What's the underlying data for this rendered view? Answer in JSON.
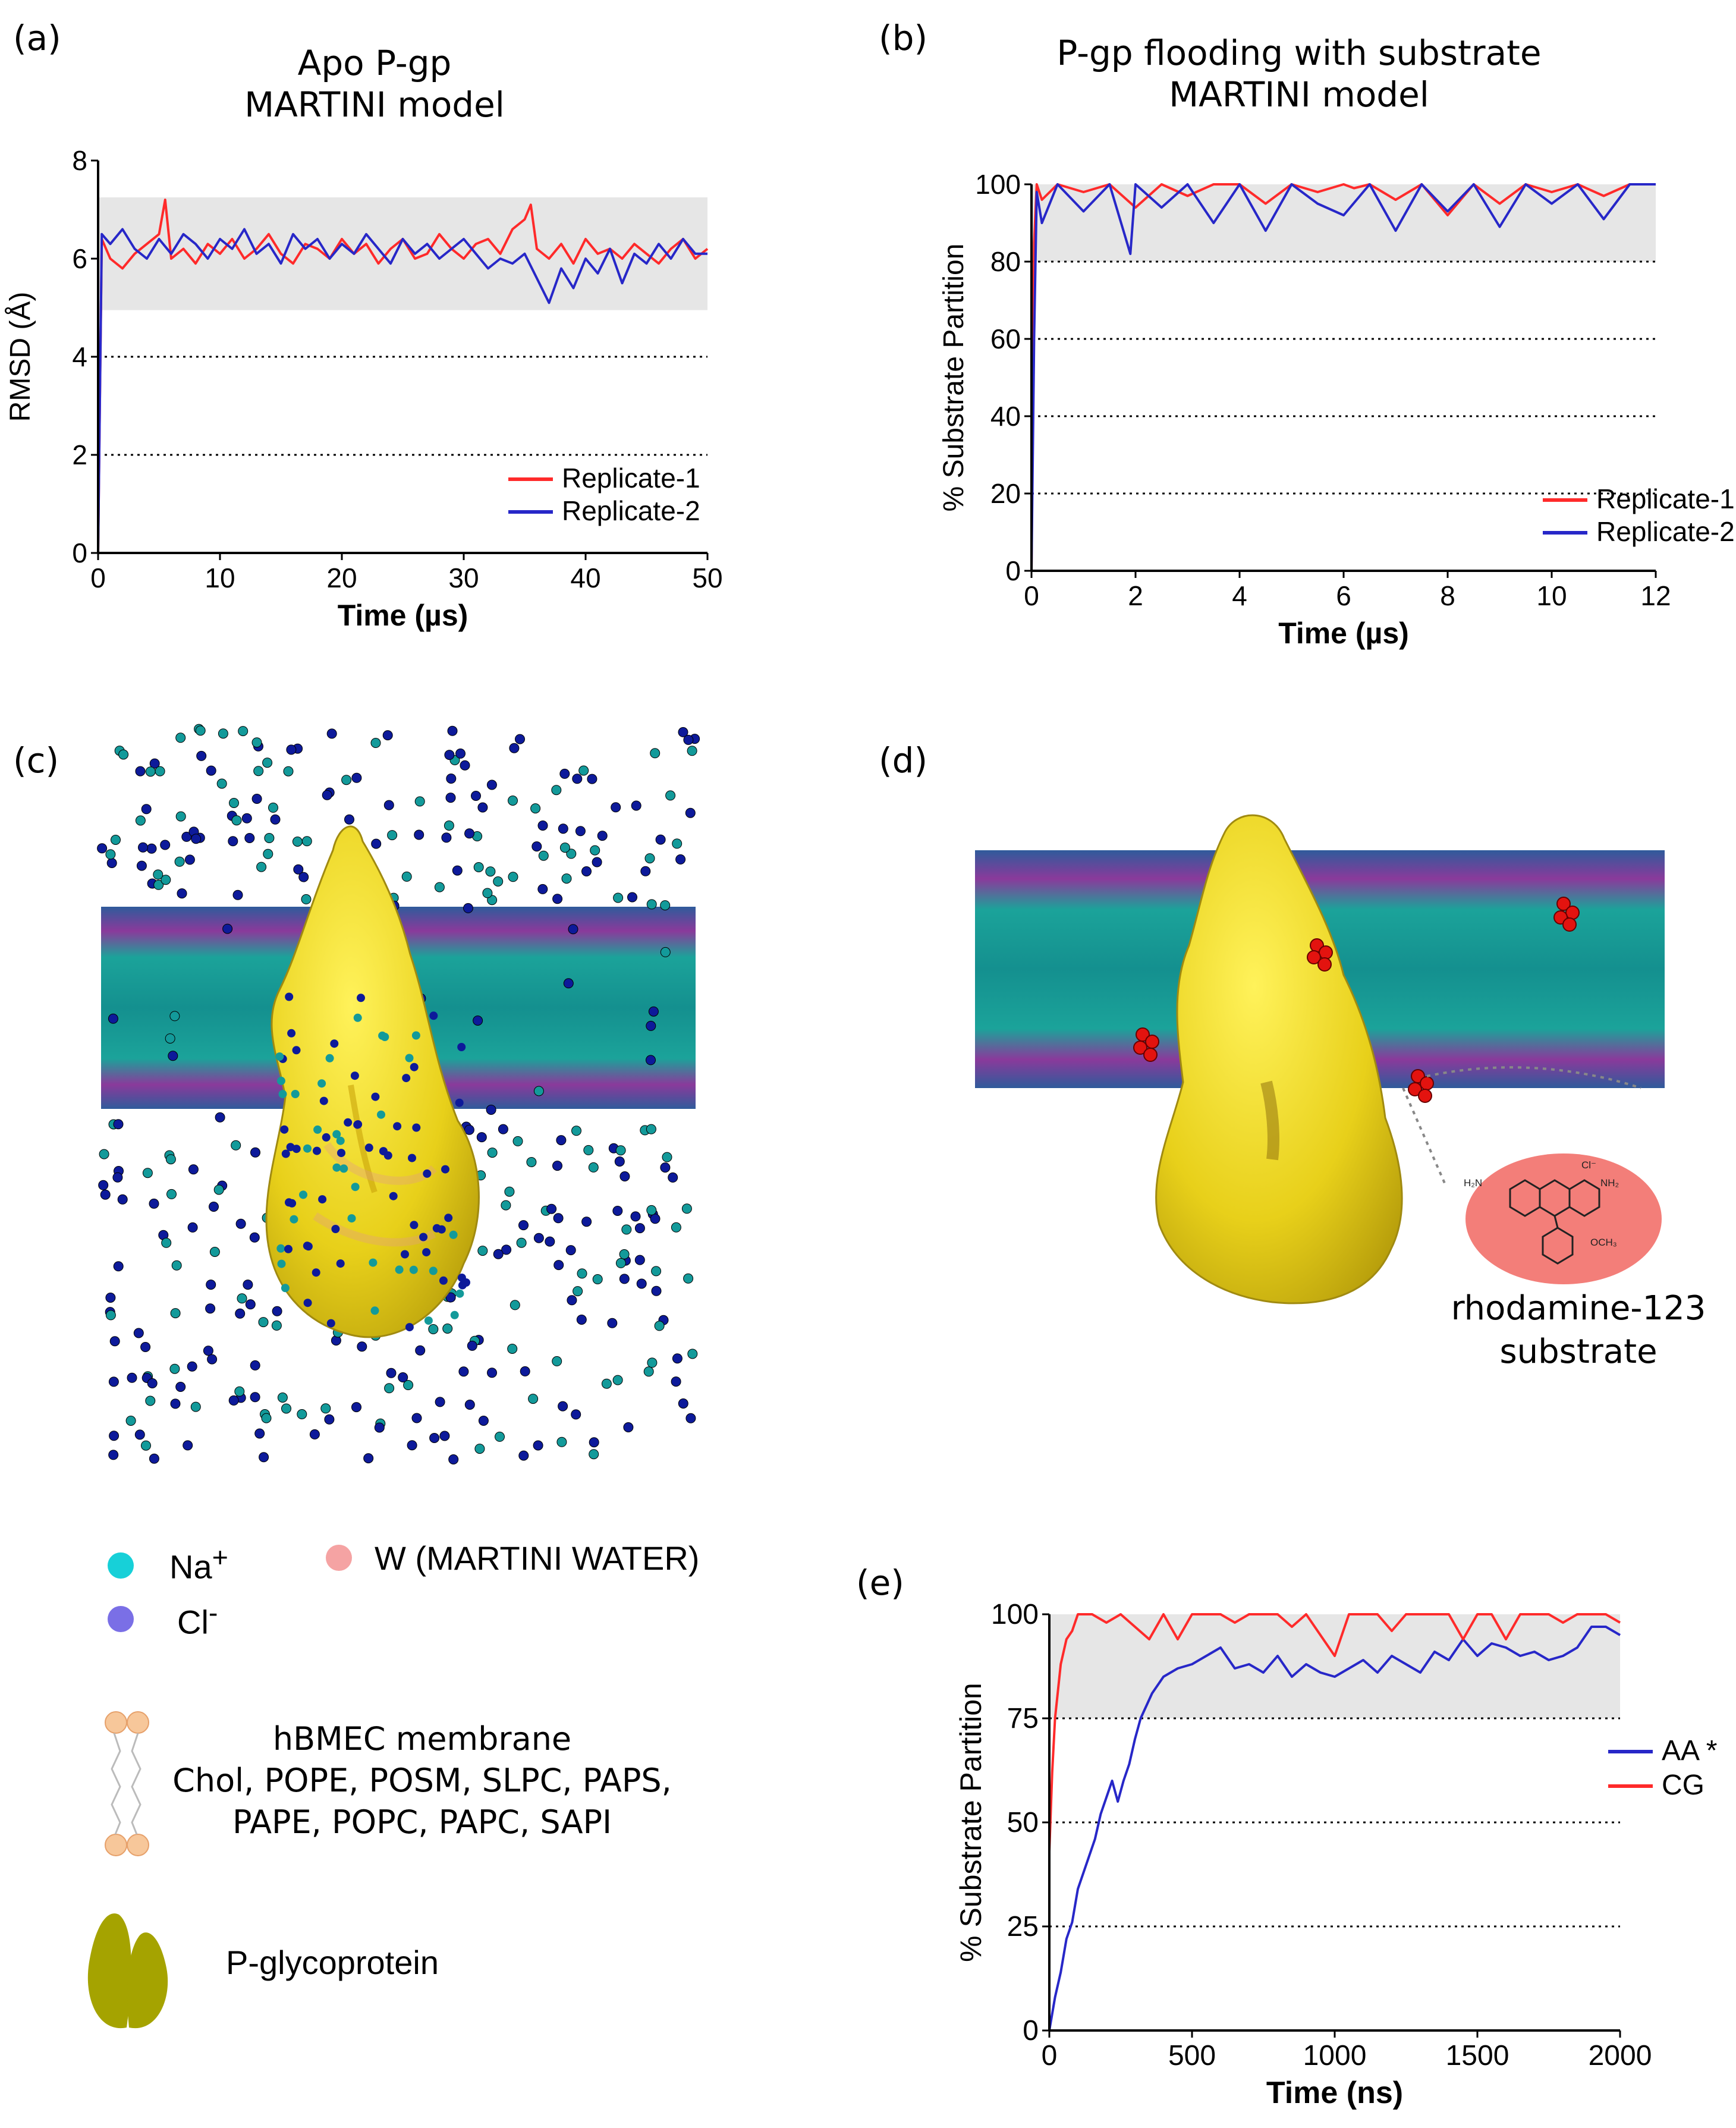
{
  "panel_labels": {
    "a": "(a)",
    "b": "(b)",
    "c": "(c)",
    "d": "(d)",
    "e": "(e)"
  },
  "panel_a": {
    "title_line1": "Apo P-gp",
    "title_line2": "MARTINI model"
  },
  "panel_b": {
    "title_line1": "P-gp flooding with substrate",
    "title_line2": "MARTINI model"
  },
  "panel_d": {
    "annotation_line1": "rhodamine-123",
    "annotation_line2": "substrate",
    "chem_labels": {
      "amine_left": "H₂N",
      "chloride": "Cl⁻",
      "amine_right": "NH₂",
      "methoxy": "OCH₃"
    }
  },
  "legend": {
    "na": "Na",
    "na_sup": "+",
    "cl": "Cl",
    "cl_sup": "-",
    "water": "W (MARTINI WATER)",
    "membrane_line1": "hBMEC membrane",
    "membrane_line2": "Chol, POPE, POSM, SLPC, PAPS,",
    "membrane_line3": "PAPE, POPC, PAPC, SAPI",
    "protein": "P-glycoprotein",
    "colors": {
      "na": "#17d0d8",
      "cl": "#7a6fe6",
      "water": "#f5a3a3",
      "lipid_head": "#f7c79a",
      "protein": "#a5a300"
    }
  },
  "colors": {
    "red": "#ff2a2a",
    "blue": "#2727c8",
    "shade": "#e6e6e6",
    "protein": "#e8d51a",
    "membrane": "#1a9a9a"
  },
  "chart_data": [
    {
      "id": "a",
      "type": "line",
      "xlabel": "Time (µs)",
      "ylabel": "RMSD (Å)",
      "xlim": [
        0,
        50
      ],
      "ylim": [
        0,
        8
      ],
      "xticks": [
        0,
        10,
        20,
        30,
        40,
        50
      ],
      "yticks": [
        0,
        2,
        4,
        6,
        8
      ],
      "dotted_hlines": [
        2,
        4
      ],
      "shaded_band": [
        4.95,
        7.25
      ],
      "legend_position": "bottom-right",
      "series": [
        {
          "name": "Replicate-1",
          "color": "#ff2a2a",
          "x": [
            0,
            0.3,
            1,
            2,
            3,
            4,
            5,
            5.5,
            6,
            7,
            8,
            9,
            10,
            11,
            12,
            13,
            14,
            15,
            16,
            17,
            18,
            19,
            20,
            21,
            22,
            23,
            24,
            25,
            26,
            27,
            28,
            29,
            30,
            31,
            32,
            33,
            34,
            35,
            35.5,
            36,
            37,
            38,
            39,
            40,
            41,
            42,
            43,
            44,
            45,
            46,
            47,
            48,
            49,
            50
          ],
          "y": [
            0,
            6.4,
            6.0,
            5.8,
            6.1,
            6.3,
            6.5,
            7.2,
            6.0,
            6.2,
            5.9,
            6.3,
            6.1,
            6.4,
            6.0,
            6.2,
            6.5,
            6.1,
            5.9,
            6.3,
            6.2,
            6.0,
            6.4,
            6.1,
            6.3,
            5.9,
            6.2,
            6.4,
            6.0,
            6.1,
            6.5,
            6.2,
            6.0,
            6.3,
            6.4,
            6.1,
            6.6,
            6.8,
            7.1,
            6.2,
            6.0,
            6.3,
            5.9,
            6.4,
            6.1,
            6.2,
            6.0,
            6.3,
            6.1,
            5.9,
            6.2,
            6.4,
            6.0,
            6.2
          ]
        },
        {
          "name": "Replicate-2",
          "color": "#2727c8",
          "x": [
            0,
            0.3,
            1,
            2,
            3,
            4,
            5,
            6,
            7,
            8,
            9,
            10,
            11,
            12,
            13,
            14,
            15,
            16,
            17,
            18,
            19,
            20,
            21,
            22,
            23,
            24,
            25,
            26,
            27,
            28,
            29,
            30,
            31,
            32,
            33,
            34,
            35,
            36,
            37,
            38,
            39,
            40,
            41,
            42,
            43,
            44,
            45,
            46,
            47,
            48,
            49,
            50
          ],
          "y": [
            0,
            6.5,
            6.3,
            6.6,
            6.2,
            6.0,
            6.4,
            6.1,
            6.5,
            6.3,
            6.0,
            6.4,
            6.2,
            6.6,
            6.1,
            6.3,
            5.9,
            6.5,
            6.2,
            6.4,
            6.0,
            6.3,
            6.1,
            6.5,
            6.2,
            5.9,
            6.4,
            6.1,
            6.3,
            6.0,
            6.2,
            6.4,
            6.1,
            5.8,
            6.0,
            5.9,
            6.1,
            5.6,
            5.1,
            5.8,
            5.4,
            6.0,
            5.7,
            6.2,
            5.5,
            6.1,
            5.9,
            6.3,
            6.0,
            6.4,
            6.1,
            6.1
          ]
        }
      ]
    },
    {
      "id": "b",
      "type": "line",
      "xlabel": "Time (µs)",
      "ylabel": "% Substrate Partition",
      "xlim": [
        0,
        12
      ],
      "ylim": [
        0,
        100
      ],
      "xticks": [
        0,
        2,
        4,
        6,
        8,
        10,
        12
      ],
      "yticks": [
        0,
        20,
        40,
        60,
        80,
        100
      ],
      "dotted_hlines": [
        20,
        40,
        60,
        80
      ],
      "shaded_band": [
        80,
        100
      ],
      "legend_position": "bottom-right",
      "series": [
        {
          "name": "Replicate-1",
          "color": "#ff2a2a",
          "x": [
            0,
            0.05,
            0.1,
            0.2,
            0.5,
            1,
            1.5,
            2,
            2.5,
            3,
            3.5,
            4,
            4.5,
            5,
            5.5,
            6,
            6.2,
            6.5,
            7,
            7.5,
            8,
            8.5,
            9,
            9.5,
            10,
            10.5,
            11,
            11.5,
            12
          ],
          "y": [
            0,
            85,
            100,
            96,
            100,
            98,
            100,
            94,
            100,
            97,
            100,
            100,
            95,
            100,
            98,
            100,
            99,
            100,
            96,
            100,
            92,
            100,
            95,
            100,
            98,
            100,
            97,
            100,
            100
          ]
        },
        {
          "name": "Replicate-2",
          "color": "#2727c8",
          "x": [
            0,
            0.05,
            0.1,
            0.2,
            0.5,
            1,
            1.5,
            1.9,
            2,
            2.5,
            3,
            3.5,
            4,
            4.5,
            5,
            5.5,
            6,
            6.5,
            7,
            7.5,
            8,
            8.5,
            9,
            9.5,
            10,
            10.5,
            11,
            11.5,
            12
          ],
          "y": [
            0,
            60,
            98,
            90,
            100,
            93,
            100,
            82,
            100,
            94,
            100,
            90,
            100,
            88,
            100,
            95,
            92,
            100,
            88,
            100,
            93,
            100,
            89,
            100,
            95,
            100,
            91,
            100,
            100
          ]
        }
      ]
    },
    {
      "id": "e",
      "type": "line",
      "xlabel": "Time (ns)",
      "ylabel": "% Substrate Partition",
      "xlim": [
        0,
        2000
      ],
      "ylim": [
        0,
        100
      ],
      "xticks": [
        0,
        500,
        1000,
        1500,
        2000
      ],
      "yticks": [
        0,
        25,
        50,
        75,
        100
      ],
      "dotted_hlines": [
        25,
        50,
        75
      ],
      "shaded_band": [
        75,
        100
      ],
      "legend_position": "right",
      "series": [
        {
          "name": "AA *",
          "color": "#2727c8",
          "x": [
            0,
            20,
            40,
            60,
            80,
            100,
            120,
            140,
            160,
            180,
            200,
            220,
            240,
            260,
            280,
            300,
            320,
            340,
            360,
            380,
            400,
            450,
            500,
            550,
            600,
            650,
            700,
            750,
            800,
            850,
            900,
            950,
            1000,
            1050,
            1100,
            1150,
            1200,
            1250,
            1300,
            1350,
            1400,
            1450,
            1500,
            1550,
            1600,
            1650,
            1700,
            1750,
            1800,
            1850,
            1900,
            1950,
            2000
          ],
          "y": [
            0,
            8,
            14,
            22,
            26,
            34,
            38,
            42,
            46,
            52,
            56,
            60,
            55,
            60,
            64,
            70,
            75,
            78,
            81,
            83,
            85,
            87,
            88,
            90,
            92,
            87,
            88,
            86,
            90,
            85,
            88,
            86,
            85,
            87,
            89,
            86,
            90,
            88,
            86,
            91,
            89,
            94,
            90,
            93,
            92,
            90,
            91,
            89,
            90,
            92,
            97,
            97,
            95
          ]
        },
        {
          "name": "CG",
          "color": "#ff2a2a",
          "x": [
            0,
            10,
            20,
            40,
            60,
            80,
            100,
            150,
            200,
            250,
            300,
            350,
            400,
            450,
            500,
            550,
            600,
            650,
            700,
            750,
            800,
            850,
            900,
            950,
            1000,
            1050,
            1100,
            1150,
            1200,
            1250,
            1300,
            1350,
            1400,
            1450,
            1500,
            1550,
            1600,
            1650,
            1700,
            1750,
            1800,
            1850,
            1900,
            1950,
            2000
          ],
          "y": [
            43,
            62,
            75,
            88,
            94,
            96,
            100,
            100,
            98,
            100,
            97,
            94,
            100,
            94,
            100,
            100,
            100,
            98,
            100,
            100,
            100,
            97,
            100,
            95,
            90,
            100,
            100,
            100,
            96,
            100,
            100,
            100,
            100,
            94,
            100,
            100,
            94,
            100,
            100,
            100,
            98,
            100,
            100,
            100,
            98
          ]
        }
      ]
    }
  ]
}
